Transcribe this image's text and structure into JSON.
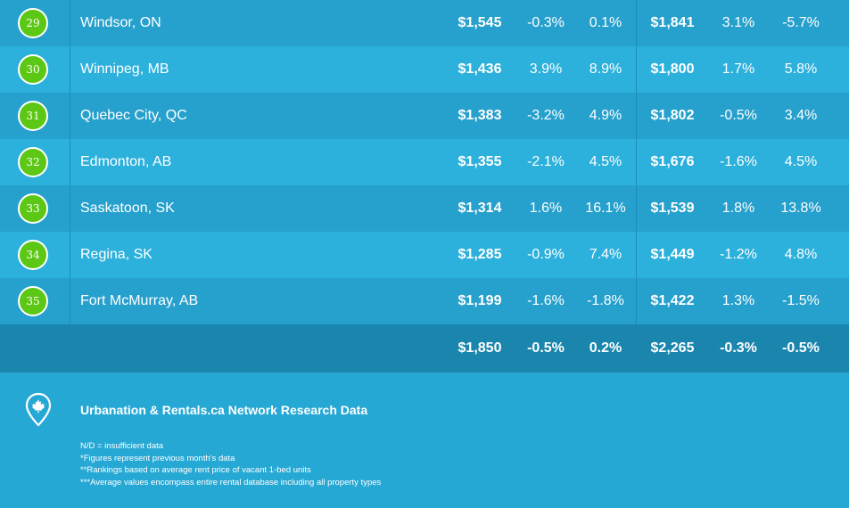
{
  "rows": [
    {
      "rank": "29",
      "city": "Windsor, ON",
      "v1": "$1,545",
      "v2": "-0.3%",
      "v3": "0.1%",
      "v4": "$1,841",
      "v5": "3.1%",
      "v6": "-5.7%"
    },
    {
      "rank": "30",
      "city": "Winnipeg, MB",
      "v1": "$1,436",
      "v2": "3.9%",
      "v3": "8.9%",
      "v4": "$1,800",
      "v5": "1.7%",
      "v6": "5.8%"
    },
    {
      "rank": "31",
      "city": "Quebec City, QC",
      "v1": "$1,383",
      "v2": "-3.2%",
      "v3": "4.9%",
      "v4": "$1,802",
      "v5": "-0.5%",
      "v6": "3.4%"
    },
    {
      "rank": "32",
      "city": "Edmonton, AB",
      "v1": "$1,355",
      "v2": "-2.1%",
      "v3": "4.5%",
      "v4": "$1,676",
      "v5": "-1.6%",
      "v6": "4.5%"
    },
    {
      "rank": "33",
      "city": "Saskatoon, SK",
      "v1": "$1,314",
      "v2": "1.6%",
      "v3": "16.1%",
      "v4": "$1,539",
      "v5": "1.8%",
      "v6": "13.8%"
    },
    {
      "rank": "34",
      "city": "Regina, SK",
      "v1": "$1,285",
      "v2": "-0.9%",
      "v3": "7.4%",
      "v4": "$1,449",
      "v5": "-1.2%",
      "v6": "4.8%"
    },
    {
      "rank": "35",
      "city": "Fort McMurray, AB",
      "v1": "$1,199",
      "v2": "-1.6%",
      "v3": "-1.8%",
      "v4": "$1,422",
      "v5": "1.3%",
      "v6": "-1.5%"
    }
  ],
  "totals": {
    "v1": "$1,850",
    "v2": "-0.5%",
    "v3": "0.2%",
    "v4": "$2,265",
    "v5": "-0.3%",
    "v6": "-0.5%"
  },
  "footer": {
    "icon": "canada-maple-leaf-pin-icon",
    "title": "Urbanation & Rentals.ca Network Research Data",
    "notes": [
      "N/D = insufficient data",
      "*Figures represent previous month's data",
      "**Rankings based on average rent price of vacant 1-bed units",
      "***Average values encompass entire rental database including all property types"
    ]
  },
  "colors": {
    "badge": "#5cc714",
    "row_a": "#26a0cc",
    "row_b": "#2cb0dc",
    "totals": "#1a86ad",
    "background": "#26a8d4"
  }
}
